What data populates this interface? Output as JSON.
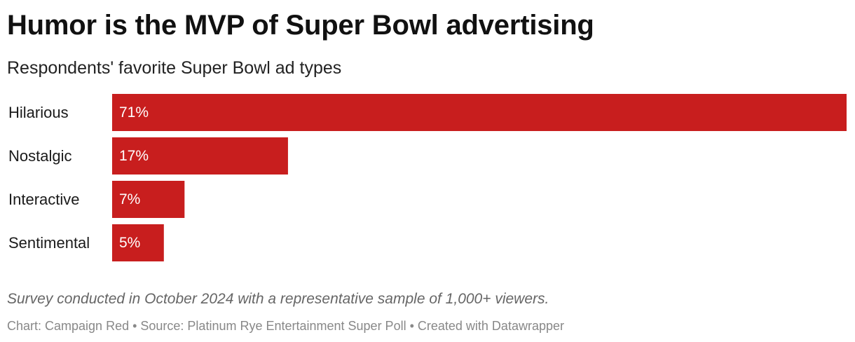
{
  "title": "Humor is the MVP of Super Bowl advertising",
  "subtitle": "Respondents' favorite Super Bowl ad types",
  "note": "Survey conducted in October 2024 with a representative sample of 1,000+ viewers.",
  "credits": "Chart: Campaign Red • Source: Platinum Rye Entertainment Super Poll • Created with Datawrapper",
  "colors": {
    "bar": "#c81e1e",
    "bar_label": "#ffffff",
    "category_label": "#1a1a1a"
  },
  "chart_data": {
    "type": "bar",
    "orientation": "horizontal",
    "categories": [
      "Hilarious",
      "Nostalgic",
      "Interactive",
      "Sentimental"
    ],
    "values": [
      71,
      17,
      7,
      5
    ],
    "labels": [
      "71%",
      "17%",
      "7%",
      "5%"
    ],
    "xlim": [
      0,
      71
    ],
    "grid": false,
    "legend": "none"
  }
}
